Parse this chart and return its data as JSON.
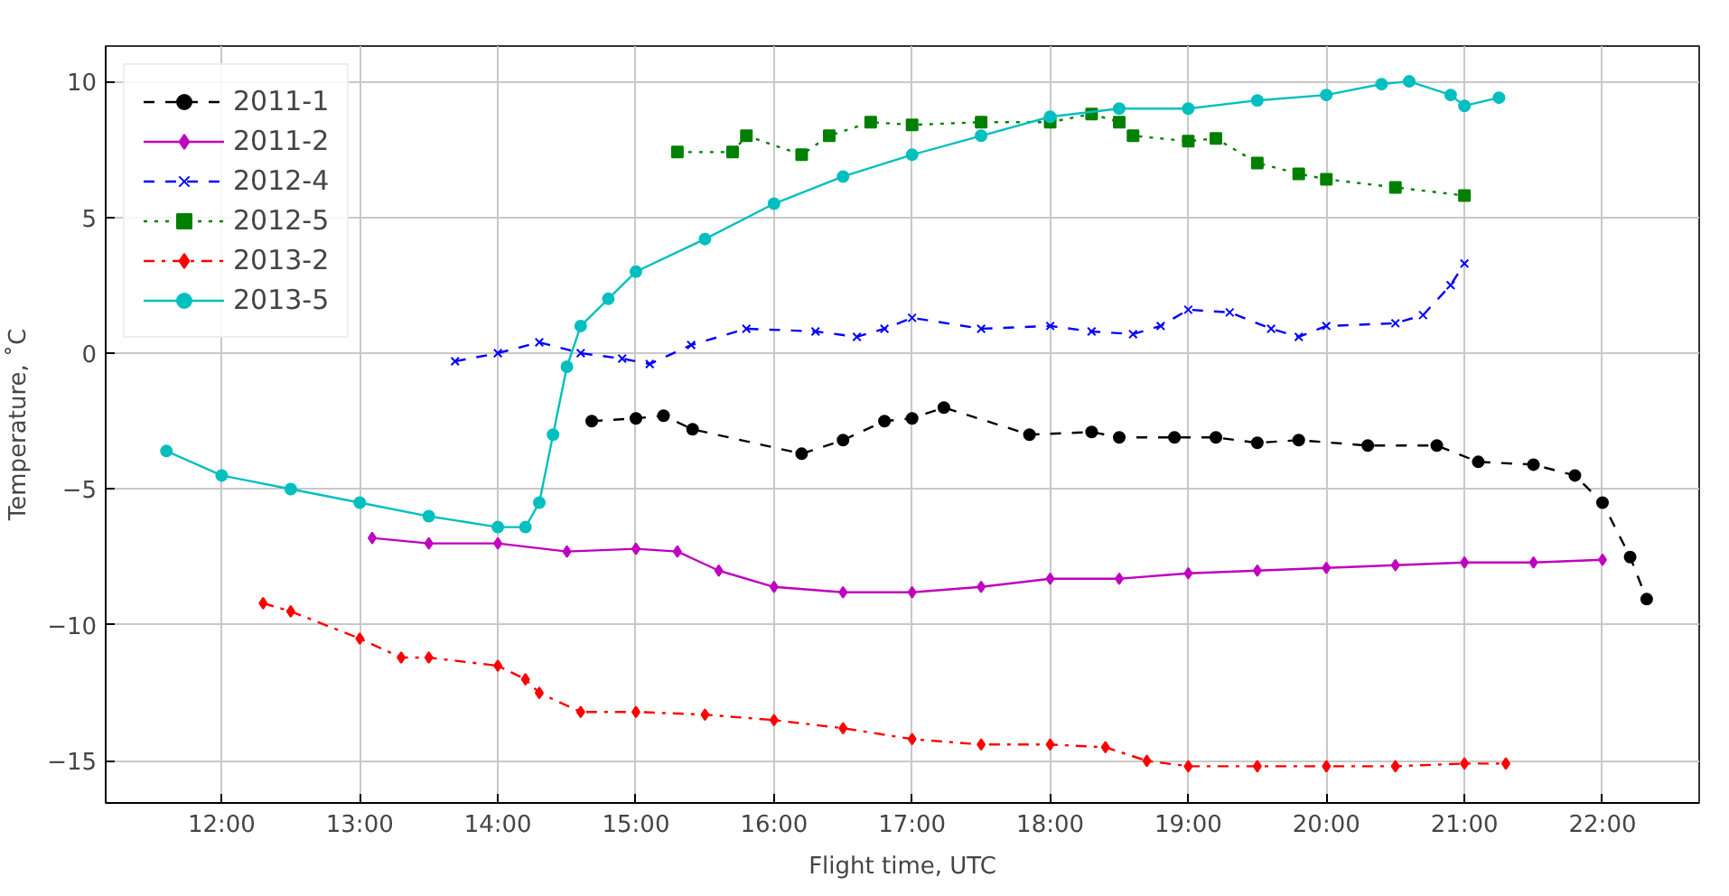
{
  "chart_data": {
    "type": "line",
    "xlabel": "Flight time, UTC",
    "ylabel": "Temperature, ˚C",
    "xlim": [
      11.16,
      22.7
    ],
    "ylim": [
      -16.55,
      11.3
    ],
    "xticks": [
      {
        "value": 12,
        "label": "12:00"
      },
      {
        "value": 13,
        "label": "13:00"
      },
      {
        "value": 14,
        "label": "14:00"
      },
      {
        "value": 15,
        "label": "15:00"
      },
      {
        "value": 16,
        "label": "16:00"
      },
      {
        "value": 17,
        "label": "17:00"
      },
      {
        "value": 18,
        "label": "18:00"
      },
      {
        "value": 19,
        "label": "19:00"
      },
      {
        "value": 20,
        "label": "20:00"
      },
      {
        "value": 21,
        "label": "21:00"
      },
      {
        "value": 22,
        "label": "22:00"
      }
    ],
    "yticks": [
      {
        "value": -15,
        "label": "−15"
      },
      {
        "value": -10,
        "label": "−10"
      },
      {
        "value": -5,
        "label": "−5"
      },
      0,
      5,
      10
    ],
    "grid": true,
    "legend": "top left",
    "series": [
      {
        "name": "2011-1",
        "color": "#000000",
        "marker": "circle",
        "line_style": "dashed",
        "x": [
          14.68,
          15.0,
          15.2,
          15.41,
          16.2,
          16.5,
          16.8,
          17.0,
          17.23,
          17.85,
          18.3,
          18.5,
          18.9,
          19.2,
          19.5,
          19.8,
          20.3,
          20.8,
          21.1,
          21.5,
          21.8,
          22.0,
          22.2,
          22.32
        ],
        "values": [
          -2.5,
          -2.4,
          -2.3,
          -2.8,
          -3.7,
          -3.2,
          -2.5,
          -2.4,
          -2.0,
          -3.0,
          -2.9,
          -3.1,
          -3.1,
          -3.1,
          -3.3,
          -3.2,
          -3.4,
          -3.4,
          -4.0,
          -4.1,
          -4.5,
          -5.5,
          -7.5,
          -9.05
        ]
      },
      {
        "name": "2011-2",
        "color": "#bf00bf",
        "marker": "diamond",
        "line_style": "solid",
        "x": [
          13.09,
          13.5,
          14.0,
          14.5,
          15.0,
          15.3,
          15.6,
          16.0,
          16.5,
          17.0,
          17.5,
          18.0,
          18.5,
          19.0,
          19.5,
          20.0,
          20.5,
          21.0,
          21.5,
          22.0
        ],
        "values": [
          -6.8,
          -7.0,
          -7.0,
          -7.3,
          -7.2,
          -7.3,
          -8.0,
          -8.6,
          -8.8,
          -8.8,
          -8.6,
          -8.3,
          -8.3,
          -8.1,
          -8.0,
          -7.9,
          -7.8,
          -7.7,
          -7.7,
          -7.6
        ]
      },
      {
        "name": "2012-4",
        "color": "#0000ff",
        "marker": "cross",
        "line_style": "dashed",
        "x": [
          13.69,
          14.0,
          14.3,
          14.6,
          14.9,
          15.1,
          15.4,
          15.8,
          16.3,
          16.6,
          16.8,
          17.0,
          17.5,
          18.0,
          18.3,
          18.6,
          18.8,
          19.0,
          19.3,
          19.6,
          19.8,
          20.0,
          20.5,
          20.7,
          20.9,
          21.0
        ],
        "values": [
          -0.3,
          0.0,
          0.4,
          0.0,
          -0.2,
          -0.4,
          0.3,
          0.9,
          0.8,
          0.6,
          0.9,
          1.3,
          0.9,
          1.0,
          0.8,
          0.7,
          1.0,
          1.6,
          1.5,
          0.9,
          0.6,
          1.0,
          1.1,
          1.4,
          2.5,
          3.3
        ]
      },
      {
        "name": "2012-5",
        "color": "#008000",
        "marker": "square",
        "line_style": "dotted",
        "x": [
          15.3,
          15.7,
          15.8,
          16.2,
          16.4,
          16.7,
          17.0,
          17.5,
          18.0,
          18.3,
          18.5,
          18.6,
          19.0,
          19.2,
          19.5,
          19.8,
          20.0,
          20.5,
          21.0
        ],
        "values": [
          7.4,
          7.4,
          8.0,
          7.3,
          8.0,
          8.5,
          8.4,
          8.5,
          8.5,
          8.8,
          8.5,
          8.0,
          7.8,
          7.9,
          7.0,
          6.6,
          6.4,
          6.1,
          5.8
        ]
      },
      {
        "name": "2013-2",
        "color": "#ff0000",
        "marker": "diamond",
        "line_style": "dashdot",
        "x": [
          12.3,
          12.5,
          13.0,
          13.3,
          13.5,
          14.0,
          14.2,
          14.3,
          14.6,
          15.0,
          15.5,
          16.0,
          16.5,
          17.0,
          17.5,
          18.0,
          18.4,
          18.7,
          19.0,
          19.5,
          20.0,
          20.5,
          21.0,
          21.3
        ],
        "values": [
          -9.2,
          -9.5,
          -10.5,
          -11.2,
          -11.2,
          -11.5,
          -12.0,
          -12.5,
          -13.2,
          -13.2,
          -13.3,
          -13.5,
          -13.8,
          -14.2,
          -14.4,
          -14.4,
          -14.5,
          -15.0,
          -15.2,
          -15.2,
          -15.2,
          -15.2,
          -15.1,
          -15.1
        ]
      },
      {
        "name": "2013-5",
        "color": "#00bfbf",
        "marker": "circle",
        "line_style": "solid",
        "x": [
          11.6,
          12.0,
          12.5,
          13.0,
          13.5,
          14.0,
          14.2,
          14.3,
          14.4,
          14.5,
          14.6,
          14.8,
          15.0,
          15.5,
          16.0,
          16.5,
          17.0,
          17.5,
          18.0,
          18.5,
          19.0,
          19.5,
          20.0,
          20.4,
          20.6,
          20.9,
          21.0,
          21.25
        ],
        "values": [
          -3.6,
          -4.5,
          -5.0,
          -5.5,
          -6.0,
          -6.4,
          -6.4,
          -5.5,
          -3.0,
          -0.5,
          1.0,
          2.0,
          3.0,
          4.2,
          5.5,
          6.5,
          7.3,
          8.0,
          8.7,
          9.0,
          9.0,
          9.3,
          9.5,
          9.9,
          10.0,
          9.5,
          9.1,
          9.4
        ]
      }
    ]
  }
}
